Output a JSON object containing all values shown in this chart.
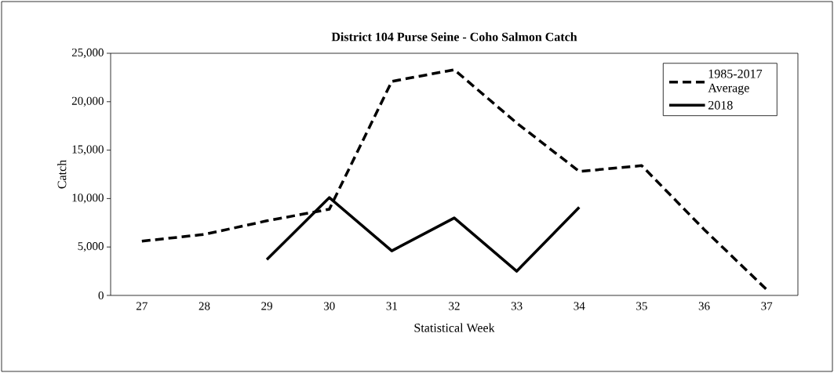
{
  "chart_data": {
    "type": "line",
    "title": "District 104 Purse Seine - Coho Salmon Catch",
    "xlabel": "Statistical Week",
    "ylabel": "Catch",
    "categories": [
      "27",
      "28",
      "29",
      "30",
      "31",
      "32",
      "33",
      "34",
      "35",
      "36",
      "37"
    ],
    "series": [
      {
        "name": "1985-2017 Average",
        "color": "#000000",
        "line_style": "dashed",
        "values": [
          5600,
          6300,
          7700,
          8900,
          22100,
          23300,
          17800,
          12800,
          13400,
          6800,
          600
        ]
      },
      {
        "name": "2018",
        "color": "#000000",
        "line_style": "solid",
        "values": [
          null,
          null,
          3700,
          10100,
          4600,
          8000,
          2500,
          9100,
          null,
          null,
          null
        ]
      }
    ],
    "ylim": [
      0,
      25000
    ],
    "yticks": [
      {
        "value": 0,
        "label": "0"
      },
      {
        "value": 5000,
        "label": "5,000"
      },
      {
        "value": 10000,
        "label": "10,000"
      },
      {
        "value": 15000,
        "label": "15,000"
      },
      {
        "value": 20000,
        "label": "20,000"
      },
      {
        "value": 25000,
        "label": "25,000"
      }
    ],
    "grid": false,
    "legend": "top right",
    "marker": "none"
  }
}
